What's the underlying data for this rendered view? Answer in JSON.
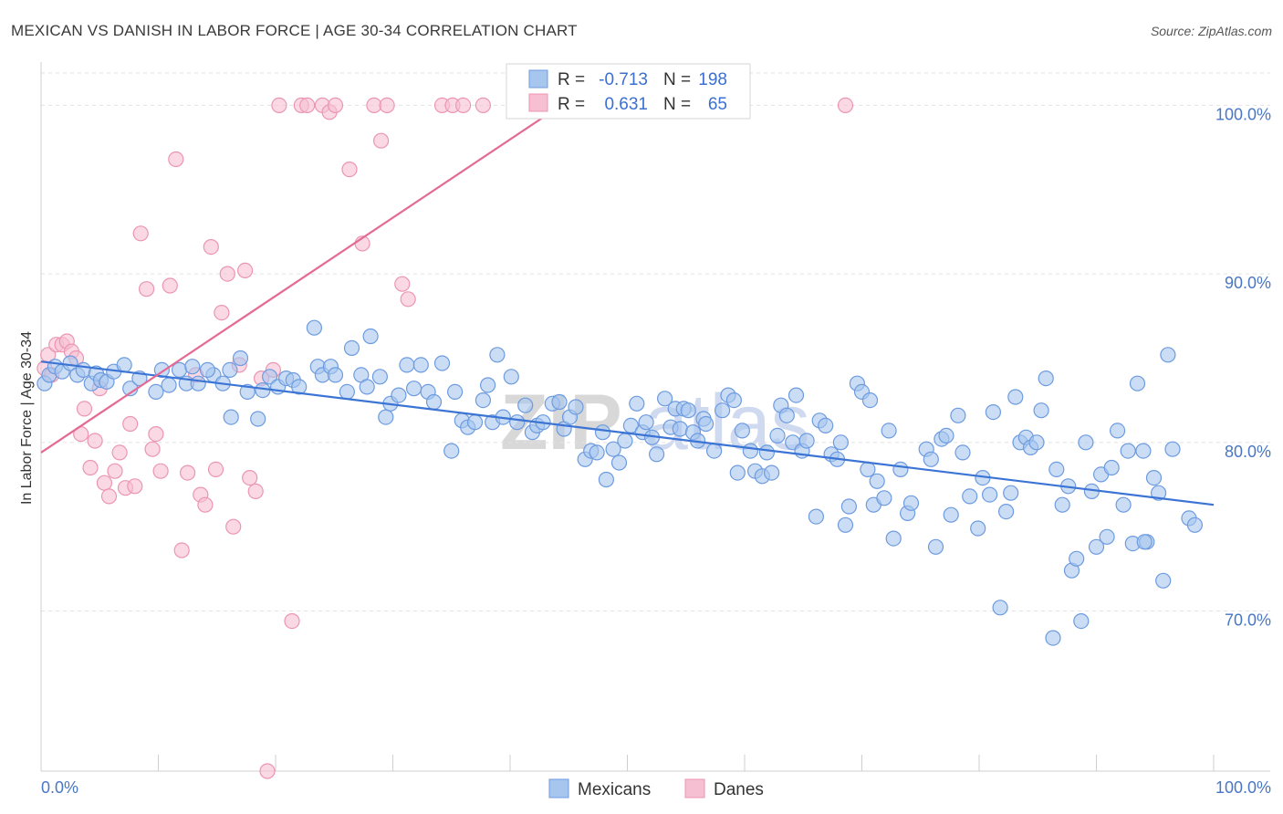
{
  "chart_data": {
    "type": "scatter",
    "title": "MEXICAN VS DANISH IN LABOR FORCE | AGE 30-34 CORRELATION CHART",
    "source": "Source: ZipAtlas.com",
    "watermark": {
      "zip": "ZIP",
      "atlas": "atlas"
    },
    "xlabel": "",
    "ylabel": "In Labor Force | Age 30-34",
    "xlim": [
      0,
      100
    ],
    "ylim": [
      60.5,
      103.0
    ],
    "x_tick_labels": [
      "0.0%",
      "100.0%"
    ],
    "y_ticks": [
      {
        "value": 70,
        "label": "70.0%"
      },
      {
        "value": 80,
        "label": "80.0%"
      },
      {
        "value": 90,
        "label": "90.0%"
      },
      {
        "value": 100,
        "label": "100.0%"
      }
    ],
    "grid": "horizontal dashed",
    "legend_position": "bottom-center",
    "stats": [
      {
        "r_label": "R =",
        "r_value": "-0.713",
        "n_label": "N =",
        "n_value": "198"
      },
      {
        "r_label": "R =",
        "r_value": "0.631",
        "n_label": "N =",
        "n_value": "65"
      }
    ],
    "series": [
      {
        "name": "Mexicans",
        "color": "#a7c6ee",
        "edge": "#6d9be0",
        "line_color": "#3b74d4",
        "trend": [
          [
            0,
            84.8
          ],
          [
            100,
            76.3
          ]
        ],
        "points": [
          [
            0.3,
            83.5
          ],
          [
            0.7,
            84.0
          ],
          [
            1.2,
            84.5
          ],
          [
            1.8,
            84.2
          ],
          [
            2.5,
            84.7
          ],
          [
            3.1,
            84.0
          ],
          [
            3.6,
            84.3
          ],
          [
            4.3,
            83.5
          ],
          [
            4.7,
            84.1
          ],
          [
            5.1,
            83.7
          ],
          [
            5.6,
            83.6
          ],
          [
            6.2,
            84.2
          ],
          [
            7.1,
            84.6
          ],
          [
            7.6,
            83.2
          ],
          [
            8.4,
            83.8
          ],
          [
            9.8,
            83.0
          ],
          [
            10.3,
            84.3
          ],
          [
            10.9,
            83.4
          ],
          [
            11.8,
            84.3
          ],
          [
            12.4,
            83.5
          ],
          [
            12.9,
            84.5
          ],
          [
            13.4,
            83.5
          ],
          [
            14.7,
            84.0
          ],
          [
            14.2,
            84.3
          ],
          [
            15.5,
            83.5
          ],
          [
            16.1,
            84.3
          ],
          [
            16.2,
            81.5
          ],
          [
            17.0,
            85.0
          ],
          [
            17.6,
            83.0
          ],
          [
            18.5,
            81.4
          ],
          [
            18.9,
            83.1
          ],
          [
            19.5,
            83.9
          ],
          [
            20.2,
            83.3
          ],
          [
            20.9,
            83.8
          ],
          [
            21.5,
            83.7
          ],
          [
            22.0,
            83.3
          ],
          [
            23.3,
            86.8
          ],
          [
            23.6,
            84.5
          ],
          [
            24.0,
            84.0
          ],
          [
            24.7,
            84.5
          ],
          [
            25.1,
            84.0
          ],
          [
            26.1,
            83.0
          ],
          [
            26.5,
            85.6
          ],
          [
            27.3,
            84.0
          ],
          [
            27.8,
            83.3
          ],
          [
            28.1,
            86.3
          ],
          [
            28.9,
            83.9
          ],
          [
            29.4,
            81.5
          ],
          [
            29.8,
            82.3
          ],
          [
            30.5,
            82.8
          ],
          [
            31.2,
            84.6
          ],
          [
            31.8,
            83.2
          ],
          [
            32.4,
            84.6
          ],
          [
            33.0,
            83.0
          ],
          [
            33.5,
            82.4
          ],
          [
            34.2,
            84.7
          ],
          [
            35.0,
            79.5
          ],
          [
            35.3,
            83.0
          ],
          [
            35.9,
            81.3
          ],
          [
            36.4,
            80.9
          ],
          [
            37.0,
            81.2
          ],
          [
            37.7,
            82.5
          ],
          [
            38.1,
            83.4
          ],
          [
            38.5,
            81.2
          ],
          [
            38.9,
            85.2
          ],
          [
            39.4,
            81.5
          ],
          [
            40.1,
            83.9
          ],
          [
            40.6,
            81.2
          ],
          [
            41.3,
            82.2
          ],
          [
            41.9,
            80.6
          ],
          [
            42.3,
            81.0
          ],
          [
            42.8,
            81.2
          ],
          [
            43.6,
            82.3
          ],
          [
            44.2,
            82.4
          ],
          [
            44.6,
            80.8
          ],
          [
            45.1,
            81.5
          ],
          [
            45.6,
            82.1
          ],
          [
            46.4,
            79.0
          ],
          [
            46.9,
            79.5
          ],
          [
            47.4,
            79.4
          ],
          [
            47.9,
            80.6
          ],
          [
            48.2,
            77.8
          ],
          [
            48.8,
            79.6
          ],
          [
            49.3,
            78.8
          ],
          [
            49.8,
            80.1
          ],
          [
            50.3,
            81.0
          ],
          [
            50.8,
            82.3
          ],
          [
            51.3,
            80.6
          ],
          [
            51.6,
            81.2
          ],
          [
            52.1,
            80.3
          ],
          [
            52.5,
            79.3
          ],
          [
            53.2,
            82.6
          ],
          [
            53.7,
            80.9
          ],
          [
            54.1,
            82.0
          ],
          [
            54.5,
            80.8
          ],
          [
            54.8,
            82.0
          ],
          [
            55.2,
            81.9
          ],
          [
            55.6,
            80.6
          ],
          [
            56.0,
            80.1
          ],
          [
            56.5,
            81.4
          ],
          [
            56.7,
            81.1
          ],
          [
            57.4,
            79.5
          ],
          [
            58.1,
            81.9
          ],
          [
            58.6,
            82.8
          ],
          [
            59.1,
            82.5
          ],
          [
            59.4,
            78.2
          ],
          [
            59.8,
            80.7
          ],
          [
            60.5,
            79.5
          ],
          [
            60.9,
            78.3
          ],
          [
            61.5,
            78.0
          ],
          [
            61.9,
            79.4
          ],
          [
            62.3,
            78.2
          ],
          [
            62.8,
            80.4
          ],
          [
            63.1,
            82.2
          ],
          [
            63.6,
            81.6
          ],
          [
            64.1,
            80.0
          ],
          [
            64.4,
            82.8
          ],
          [
            64.9,
            79.5
          ],
          [
            65.3,
            80.1
          ],
          [
            66.1,
            75.6
          ],
          [
            66.4,
            81.3
          ],
          [
            66.9,
            81.0
          ],
          [
            67.4,
            79.3
          ],
          [
            67.9,
            79.0
          ],
          [
            68.2,
            80.0
          ],
          [
            68.6,
            75.1
          ],
          [
            68.9,
            76.2
          ],
          [
            69.6,
            83.5
          ],
          [
            70.0,
            83.0
          ],
          [
            70.5,
            78.4
          ],
          [
            71.0,
            76.3
          ],
          [
            71.3,
            77.7
          ],
          [
            71.9,
            76.7
          ],
          [
            72.3,
            80.7
          ],
          [
            72.7,
            74.3
          ],
          [
            73.3,
            78.4
          ],
          [
            73.9,
            75.8
          ],
          [
            74.2,
            76.4
          ],
          [
            75.5,
            79.6
          ],
          [
            75.9,
            79.0
          ],
          [
            76.3,
            73.8
          ],
          [
            76.8,
            80.2
          ],
          [
            77.2,
            80.4
          ],
          [
            77.6,
            75.7
          ],
          [
            78.2,
            81.6
          ],
          [
            78.6,
            79.4
          ],
          [
            79.2,
            76.8
          ],
          [
            79.9,
            74.9
          ],
          [
            80.3,
            77.9
          ],
          [
            80.9,
            76.9
          ],
          [
            81.2,
            81.8
          ],
          [
            81.8,
            70.2
          ],
          [
            82.3,
            75.9
          ],
          [
            82.7,
            77.0
          ],
          [
            83.1,
            82.7
          ],
          [
            83.5,
            80.0
          ],
          [
            84.0,
            80.3
          ],
          [
            84.4,
            79.7
          ],
          [
            84.9,
            80.0
          ],
          [
            85.3,
            81.9
          ],
          [
            85.7,
            83.8
          ],
          [
            86.3,
            68.4
          ],
          [
            86.6,
            78.4
          ],
          [
            87.1,
            76.3
          ],
          [
            87.6,
            77.4
          ],
          [
            87.9,
            72.4
          ],
          [
            88.3,
            73.1
          ],
          [
            88.7,
            69.4
          ],
          [
            89.1,
            80.0
          ],
          [
            89.6,
            77.1
          ],
          [
            90.0,
            73.8
          ],
          [
            90.4,
            78.1
          ],
          [
            90.9,
            74.4
          ],
          [
            91.3,
            78.5
          ],
          [
            91.8,
            80.7
          ],
          [
            92.3,
            76.3
          ],
          [
            92.7,
            79.5
          ],
          [
            93.1,
            74.0
          ],
          [
            93.5,
            83.5
          ],
          [
            94.0,
            79.5
          ],
          [
            94.3,
            74.1
          ],
          [
            94.9,
            77.9
          ],
          [
            95.3,
            77.0
          ],
          [
            95.7,
            71.8
          ],
          [
            96.1,
            85.2
          ],
          [
            96.5,
            79.6
          ],
          [
            97.9,
            75.5
          ],
          [
            98.4,
            75.1
          ],
          [
            94.1,
            74.1
          ],
          [
            70.7,
            82.5
          ]
        ]
      },
      {
        "name": "Danes",
        "color": "#f7c0d2",
        "edge": "#ec95b2",
        "line_color": "#e46a94",
        "trend": [
          [
            0,
            79.4
          ],
          [
            45,
            100.3
          ]
        ],
        "points": [
          [
            0.3,
            84.4
          ],
          [
            0.6,
            85.2
          ],
          [
            0.9,
            84.0
          ],
          [
            1.3,
            85.8
          ],
          [
            1.8,
            85.8
          ],
          [
            2.2,
            86.0
          ],
          [
            2.6,
            85.4
          ],
          [
            3.0,
            85.0
          ],
          [
            3.4,
            80.5
          ],
          [
            3.7,
            82.0
          ],
          [
            4.2,
            78.5
          ],
          [
            4.6,
            80.1
          ],
          [
            5.0,
            83.2
          ],
          [
            5.4,
            77.6
          ],
          [
            5.8,
            76.8
          ],
          [
            6.3,
            78.3
          ],
          [
            6.7,
            79.4
          ],
          [
            7.2,
            77.3
          ],
          [
            7.6,
            81.1
          ],
          [
            8.0,
            77.4
          ],
          [
            8.5,
            92.4
          ],
          [
            9.0,
            89.1
          ],
          [
            9.5,
            79.6
          ],
          [
            9.8,
            80.5
          ],
          [
            10.2,
            78.3
          ],
          [
            11.0,
            89.3
          ],
          [
            11.5,
            96.8
          ],
          [
            12.0,
            73.6
          ],
          [
            12.5,
            78.2
          ],
          [
            13.2,
            84.0
          ],
          [
            13.6,
            76.9
          ],
          [
            14.0,
            76.3
          ],
          [
            14.5,
            91.6
          ],
          [
            14.9,
            78.4
          ],
          [
            15.4,
            87.7
          ],
          [
            15.9,
            90.0
          ],
          [
            16.4,
            75.0
          ],
          [
            16.9,
            84.6
          ],
          [
            17.4,
            90.2
          ],
          [
            17.8,
            77.9
          ],
          [
            18.3,
            77.1
          ],
          [
            18.8,
            83.8
          ],
          [
            19.3,
            60.5
          ],
          [
            19.8,
            84.3
          ],
          [
            20.3,
            100.0
          ],
          [
            21.4,
            69.4
          ],
          [
            22.2,
            100.0
          ],
          [
            22.7,
            100.0
          ],
          [
            24.0,
            100.0
          ],
          [
            24.6,
            99.6
          ],
          [
            25.1,
            100.0
          ],
          [
            26.3,
            96.2
          ],
          [
            27.4,
            91.8
          ],
          [
            28.4,
            100.0
          ],
          [
            29.0,
            97.9
          ],
          [
            29.5,
            100.0
          ],
          [
            30.8,
            89.4
          ],
          [
            31.3,
            88.5
          ],
          [
            34.2,
            100.0
          ],
          [
            35.1,
            100.0
          ],
          [
            36.0,
            100.0
          ],
          [
            37.7,
            100.0
          ],
          [
            40.8,
            100.0
          ],
          [
            47.2,
            100.0
          ],
          [
            68.6,
            100.0
          ]
        ]
      }
    ]
  }
}
